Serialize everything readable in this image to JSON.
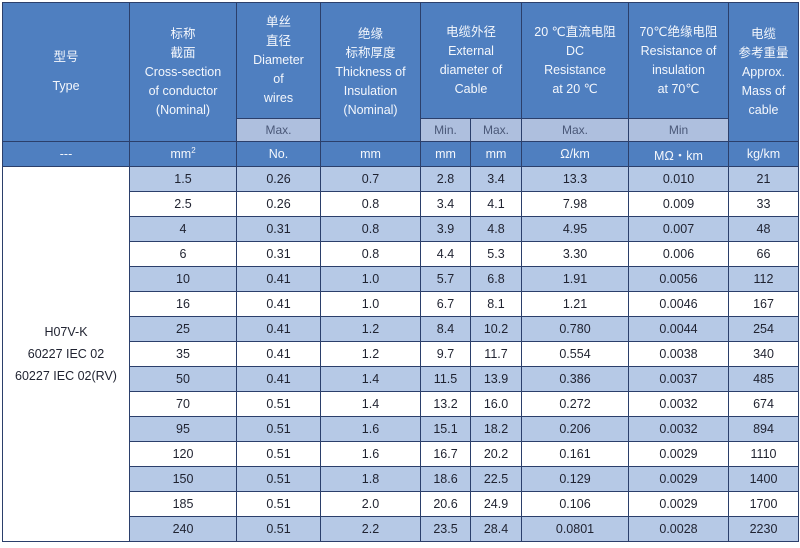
{
  "headers": {
    "type": {
      "cn": "型号",
      "en": "Type"
    },
    "cross_section": {
      "cn1": "标称",
      "cn2": "截面",
      "en1": "Cross-section",
      "en2": "of conductor",
      "en3": "(Nominal)"
    },
    "wire_diameter": {
      "cn1": "单丝",
      "cn2": "直径",
      "en1": "Diameter",
      "en2": "of",
      "en3": "wires",
      "sub": "Max."
    },
    "insulation": {
      "cn": "绝缘",
      "cn2": "标称厚度",
      "en1": "Thickness of",
      "en2": "Insulation",
      "en3": "(Nominal)"
    },
    "outer_diameter": {
      "cn": "电缆外径",
      "en1": "External",
      "en2": "diameter of",
      "en3": "Cable",
      "sub_min": "Min.",
      "sub_max": "Max."
    },
    "dc_resistance": {
      "cn": "20 ℃直流电阻",
      "en1": "DC",
      "en2": "Resistance",
      "en3": "at 20 ℃",
      "sub": "Max."
    },
    "insulation_resistance": {
      "cn": "70℃绝缘电阻",
      "en1": "Resistance of",
      "en2": "insulation",
      "en3": "at 70℃",
      "sub": "Min"
    },
    "mass": {
      "cn1": "电缆",
      "cn2": "参考重量",
      "en1": "Approx.",
      "en2": "Mass of",
      "en3": "cable"
    }
  },
  "units": {
    "type": "---",
    "cross_section": "mm",
    "cross_section_sup": "2",
    "wire_diameter": "No.",
    "insulation": "mm",
    "outer_min": "mm",
    "outer_max": "mm",
    "dc_resistance": "Ω/km",
    "insulation_resistance": "MΩ・km",
    "mass": "kg/km"
  },
  "type_names": [
    "H07V-K",
    "60227 IEC 02",
    "60227 IEC 02(RV)"
  ],
  "rows": [
    [
      "1.5",
      "0.26",
      "0.7",
      "2.8",
      "3.4",
      "13.3",
      "0.010",
      "21"
    ],
    [
      "2.5",
      "0.26",
      "0.8",
      "3.4",
      "4.1",
      "7.98",
      "0.009",
      "33"
    ],
    [
      "4",
      "0.31",
      "0.8",
      "3.9",
      "4.8",
      "4.95",
      "0.007",
      "48"
    ],
    [
      "6",
      "0.31",
      "0.8",
      "4.4",
      "5.3",
      "3.30",
      "0.006",
      "66"
    ],
    [
      "10",
      "0.41",
      "1.0",
      "5.7",
      "6.8",
      "1.91",
      "0.0056",
      "112"
    ],
    [
      "16",
      "0.41",
      "1.0",
      "6.7",
      "8.1",
      "1.21",
      "0.0046",
      "167"
    ],
    [
      "25",
      "0.41",
      "1.2",
      "8.4",
      "10.2",
      "0.780",
      "0.0044",
      "254"
    ],
    [
      "35",
      "0.41",
      "1.2",
      "9.7",
      "11.7",
      "0.554",
      "0.0038",
      "340"
    ],
    [
      "50",
      "0.41",
      "1.4",
      "11.5",
      "13.9",
      "0.386",
      "0.0037",
      "485"
    ],
    [
      "70",
      "0.51",
      "1.4",
      "13.2",
      "16.0",
      "0.272",
      "0.0032",
      "674"
    ],
    [
      "95",
      "0.51",
      "1.6",
      "15.1",
      "18.2",
      "0.206",
      "0.0032",
      "894"
    ],
    [
      "120",
      "0.51",
      "1.6",
      "16.7",
      "20.2",
      "0.161",
      "0.0029",
      "1110"
    ],
    [
      "150",
      "0.51",
      "1.8",
      "18.6",
      "22.5",
      "0.129",
      "0.0029",
      "1400"
    ],
    [
      "185",
      "0.51",
      "2.0",
      "20.6",
      "24.9",
      "0.106",
      "0.0029",
      "1700"
    ],
    [
      "240",
      "0.51",
      "2.2",
      "23.5",
      "28.4",
      "0.0801",
      "0.0028",
      "2230"
    ]
  ],
  "colors": {
    "header_blue": "#4f7fc0",
    "subheader_blue": "#aebfde",
    "row_band_blue": "#b6c9e6",
    "border": "#2b3f6b"
  }
}
